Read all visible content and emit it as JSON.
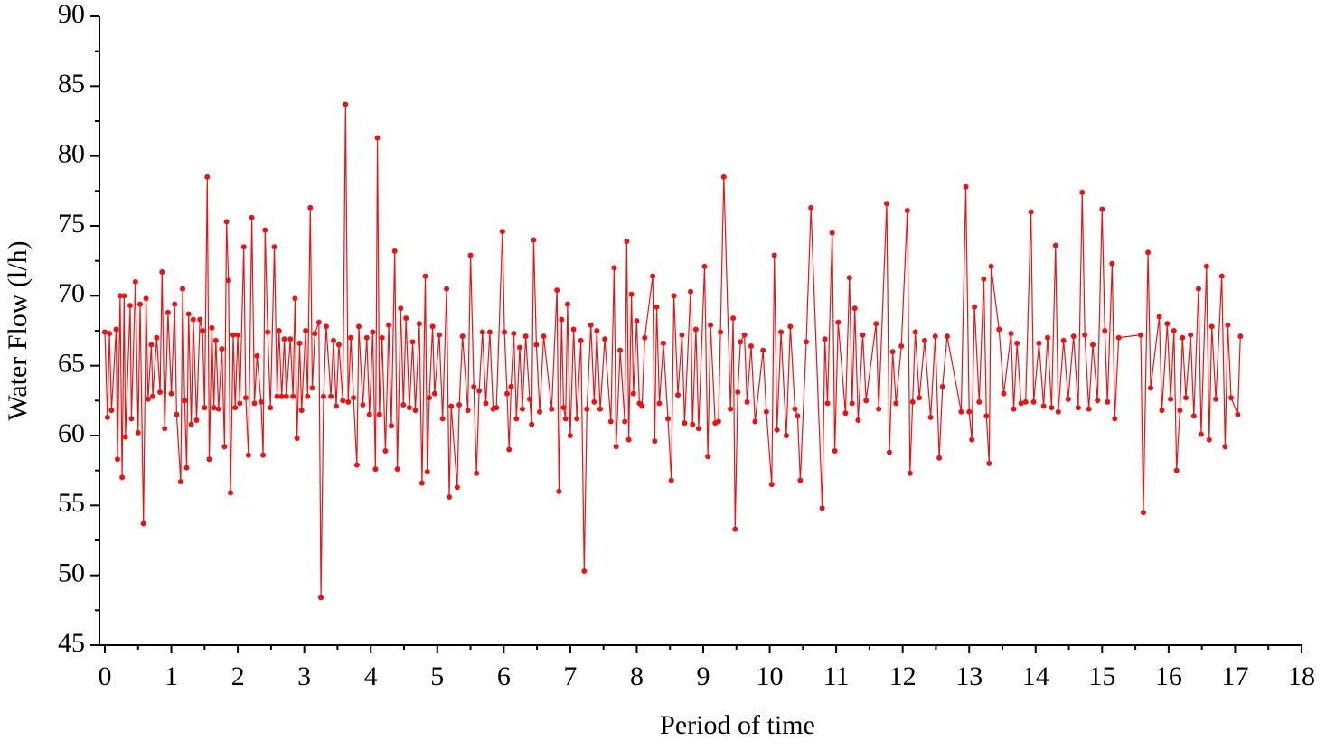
{
  "chart_data": {
    "type": "line",
    "x_label": "Period of time",
    "y_label": "Water Flow (l/h)",
    "color": "#ee1111",
    "xlim": [
      0,
      18
    ],
    "xticks": [
      0,
      1,
      2,
      3,
      4,
      5,
      6,
      7,
      8,
      9,
      10,
      11,
      12,
      13,
      14,
      15,
      16,
      17,
      18
    ],
    "ylim": [
      45,
      90
    ],
    "yticks": [
      45,
      50,
      55,
      60,
      65,
      70,
      75,
      80,
      85,
      90
    ],
    "grid": false,
    "x": [
      0.0,
      0.04,
      0.07,
      0.1,
      0.17,
      0.19,
      0.23,
      0.26,
      0.29,
      0.31,
      0.38,
      0.4,
      0.46,
      0.5,
      0.53,
      0.58,
      0.62,
      0.65,
      0.7,
      0.72,
      0.78,
      0.83,
      0.86,
      0.9,
      0.95,
      1.0,
      1.05,
      1.08,
      1.14,
      1.17,
      1.2,
      1.23,
      1.26,
      1.3,
      1.33,
      1.38,
      1.43,
      1.47,
      1.5,
      1.54,
      1.57,
      1.61,
      1.64,
      1.67,
      1.71,
      1.76,
      1.8,
      1.83,
      1.86,
      1.89,
      1.93,
      1.96,
      2.0,
      2.03,
      2.09,
      2.12,
      2.16,
      2.21,
      2.25,
      2.29,
      2.35,
      2.38,
      2.41,
      2.45,
      2.49,
      2.55,
      2.59,
      2.62,
      2.66,
      2.7,
      2.73,
      2.79,
      2.83,
      2.86,
      2.89,
      2.93,
      2.96,
      3.02,
      3.05,
      3.09,
      3.12,
      3.16,
      3.22,
      3.25,
      3.29,
      3.33,
      3.4,
      3.44,
      3.48,
      3.52,
      3.58,
      3.62,
      3.66,
      3.7,
      3.74,
      3.79,
      3.82,
      3.88,
      3.94,
      3.98,
      4.03,
      4.07,
      4.1,
      4.13,
      4.17,
      4.22,
      4.27,
      4.31,
      4.36,
      4.4,
      4.45,
      4.49,
      4.53,
      4.58,
      4.63,
      4.67,
      4.73,
      4.77,
      4.82,
      4.85,
      4.88,
      4.93,
      4.96,
      5.03,
      5.08,
      5.14,
      5.18,
      5.21,
      5.3,
      5.33,
      5.38,
      5.46,
      5.5,
      5.55,
      5.59,
      5.63,
      5.68,
      5.73,
      5.79,
      5.84,
      5.89,
      5.98,
      6.01,
      6.05,
      6.08,
      6.11,
      6.15,
      6.19,
      6.24,
      6.28,
      6.33,
      6.39,
      6.42,
      6.45,
      6.49,
      6.54,
      6.6,
      6.72,
      6.8,
      6.83,
      6.87,
      6.9,
      6.93,
      6.96,
      7.0,
      7.05,
      7.1,
      7.16,
      7.21,
      7.25,
      7.31,
      7.36,
      7.4,
      7.45,
      7.52,
      7.61,
      7.66,
      7.69,
      7.75,
      7.82,
      7.85,
      7.88,
      7.92,
      7.95,
      8.0,
      8.04,
      8.08,
      8.12,
      8.24,
      8.27,
      8.3,
      8.34,
      8.4,
      8.47,
      8.52,
      8.56,
      8.62,
      8.68,
      8.72,
      8.81,
      8.84,
      8.89,
      8.93,
      9.02,
      9.07,
      9.11,
      9.18,
      9.23,
      9.26,
      9.31,
      9.41,
      9.45,
      9.48,
      9.52,
      9.56,
      9.62,
      9.66,
      9.72,
      9.78,
      9.9,
      9.95,
      10.03,
      10.07,
      10.11,
      10.17,
      10.25,
      10.31,
      10.38,
      10.42,
      10.46,
      10.55,
      10.62,
      10.79,
      10.83,
      10.87,
      10.94,
      10.98,
      11.03,
      11.14,
      11.2,
      11.24,
      11.28,
      11.33,
      11.4,
      11.45,
      11.6,
      11.64,
      11.76,
      11.8,
      11.85,
      11.9,
      11.98,
      12.07,
      12.11,
      12.15,
      12.19,
      12.25,
      12.33,
      12.42,
      12.49,
      12.55,
      12.6,
      12.67,
      12.88,
      12.95,
      13.0,
      13.04,
      13.08,
      13.15,
      13.22,
      13.26,
      13.3,
      13.33,
      13.45,
      13.52,
      13.63,
      13.67,
      13.72,
      13.78,
      13.85,
      13.93,
      13.97,
      14.05,
      14.12,
      14.18,
      14.24,
      14.3,
      14.34,
      14.42,
      14.49,
      14.57,
      14.64,
      14.7,
      14.74,
      14.8,
      14.86,
      14.93,
      15.0,
      15.04,
      15.08,
      15.15,
      15.19,
      15.25,
      15.58,
      15.62,
      15.69,
      15.73,
      15.86,
      15.9,
      15.98,
      16.03,
      16.08,
      16.12,
      16.17,
      16.21,
      16.26,
      16.33,
      16.38,
      16.45,
      16.49,
      16.57,
      16.61,
      16.65,
      16.71,
      16.8,
      16.85,
      16.89,
      16.94,
      17.04,
      17.08
    ],
    "values": [
      67.4,
      61.3,
      67.3,
      61.8,
      67.6,
      58.3,
      70.0,
      57.0,
      70.0,
      59.9,
      69.3,
      61.2,
      71.0,
      60.2,
      69.4,
      53.7,
      69.8,
      62.6,
      66.5,
      62.8,
      67.0,
      63.1,
      71.7,
      60.5,
      68.8,
      63.0,
      69.4,
      61.5,
      56.7,
      70.5,
      62.5,
      57.7,
      68.7,
      60.8,
      68.3,
      61.1,
      68.3,
      67.5,
      62.0,
      78.5,
      58.3,
      67.7,
      62.0,
      66.8,
      61.9,
      66.2,
      59.2,
      75.3,
      71.1,
      55.9,
      67.2,
      62.0,
      67.2,
      62.3,
      73.5,
      62.7,
      58.6,
      75.6,
      62.3,
      65.7,
      62.4,
      58.6,
      74.7,
      67.4,
      62.0,
      73.5,
      62.8,
      67.5,
      62.8,
      66.9,
      62.8,
      66.9,
      62.8,
      69.8,
      59.8,
      66.6,
      61.8,
      67.5,
      62.8,
      76.3,
      63.4,
      67.3,
      68.1,
      48.4,
      62.8,
      67.8,
      62.8,
      66.8,
      62.1,
      66.5,
      62.5,
      83.7,
      62.4,
      67.0,
      62.7,
      57.9,
      67.8,
      62.2,
      67.0,
      61.5,
      67.4,
      57.6,
      81.3,
      61.5,
      67.0,
      58.9,
      67.9,
      60.7,
      73.2,
      57.6,
      69.1,
      62.2,
      68.4,
      62.0,
      66.7,
      61.8,
      68.0,
      56.6,
      71.4,
      57.4,
      62.7,
      67.8,
      63.0,
      67.2,
      61.2,
      70.5,
      55.6,
      62.1,
      56.3,
      62.2,
      67.1,
      61.8,
      72.9,
      63.5,
      57.3,
      63.2,
      67.4,
      62.3,
      67.4,
      61.9,
      62.0,
      74.6,
      67.4,
      63.0,
      59.0,
      63.5,
      67.3,
      61.2,
      66.3,
      61.9,
      67.1,
      62.6,
      60.8,
      74.0,
      66.5,
      61.7,
      67.1,
      61.9,
      70.4,
      56.0,
      68.3,
      62.0,
      61.2,
      69.4,
      60.0,
      67.6,
      61.2,
      66.8,
      50.3,
      61.9,
      67.9,
      62.4,
      67.5,
      61.9,
      66.9,
      61.0,
      72.0,
      59.2,
      66.1,
      61.0,
      73.9,
      59.7,
      70.1,
      63.0,
      68.2,
      62.3,
      62.1,
      67.0,
      71.4,
      59.6,
      69.2,
      62.3,
      66.6,
      61.2,
      56.8,
      70.0,
      62.9,
      67.2,
      60.9,
      70.3,
      60.8,
      67.6,
      60.5,
      72.1,
      58.5,
      67.9,
      60.9,
      61.0,
      67.4,
      78.5,
      61.9,
      68.4,
      53.3,
      63.1,
      66.7,
      67.2,
      62.4,
      66.4,
      61.0,
      66.1,
      61.7,
      56.5,
      72.9,
      60.4,
      67.4,
      60.0,
      67.8,
      61.9,
      61.4,
      56.8,
      66.7,
      76.3,
      54.8,
      66.9,
      62.3,
      74.5,
      58.9,
      68.1,
      61.6,
      71.3,
      62.3,
      69.1,
      61.1,
      67.2,
      62.5,
      68.0,
      61.9,
      76.6,
      58.8,
      66.0,
      62.3,
      66.4,
      76.1,
      57.3,
      62.4,
      67.4,
      62.7,
      66.8,
      61.3,
      67.1,
      58.4,
      63.5,
      67.1,
      61.7,
      77.8,
      61.7,
      59.7,
      69.2,
      62.4,
      71.2,
      61.4,
      58.0,
      72.1,
      67.6,
      63.0,
      67.3,
      61.9,
      66.6,
      62.3,
      62.4,
      76.0,
      62.4,
      66.6,
      62.1,
      67.0,
      62.0,
      73.6,
      61.7,
      66.8,
      62.6,
      67.1,
      62.0,
      77.4,
      67.2,
      61.9,
      66.5,
      62.5,
      76.2,
      67.5,
      62.4,
      72.3,
      61.2,
      67.0,
      67.2,
      54.5,
      73.1,
      63.4,
      68.5,
      61.8,
      68.0,
      62.6,
      67.5,
      57.5,
      61.8,
      67.0,
      62.7,
      67.2,
      61.4,
      70.5,
      60.1,
      72.1,
      59.7,
      67.8,
      62.6,
      71.4,
      59.2,
      67.9,
      62.7,
      61.5,
      67.1
    ]
  }
}
